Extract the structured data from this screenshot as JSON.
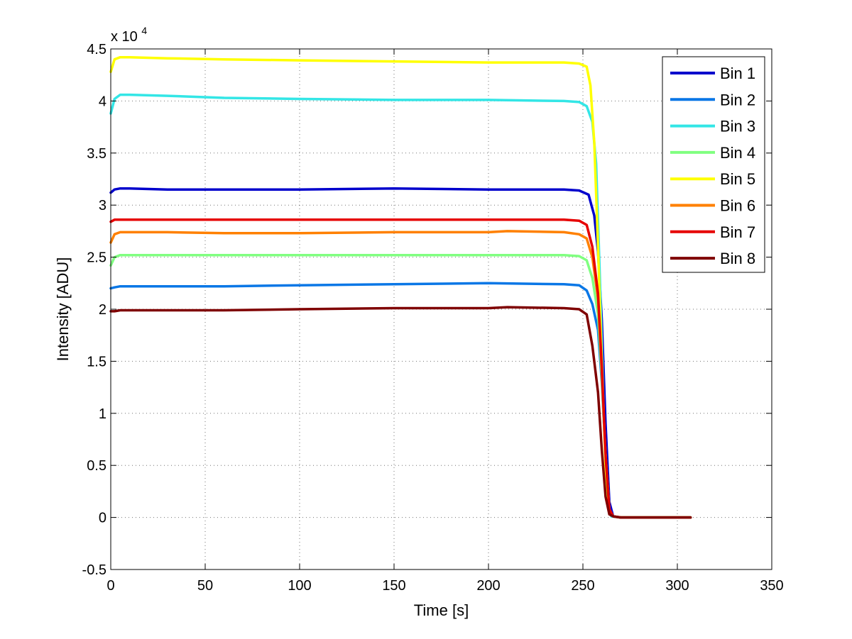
{
  "chart_data": {
    "type": "line",
    "title": "",
    "xlabel": "Time [s]",
    "ylabel": "Intensity [ADU]",
    "y_multiplier_label": "x 10",
    "y_multiplier_exponent": "4",
    "xlim": [
      0,
      350
    ],
    "ylim": [
      -0.5,
      4.5
    ],
    "y_unit_scale": 10000,
    "x_ticks": [
      "0",
      "50",
      "100",
      "150",
      "200",
      "250",
      "300",
      "350"
    ],
    "y_ticks": [
      "-0.5",
      "0",
      "0.5",
      "1",
      "1.5",
      "2",
      "2.5",
      "3",
      "3.5",
      "4",
      "4.5"
    ],
    "grid": true,
    "legend_position": "top-right",
    "series": [
      {
        "name": "Bin 1",
        "color": "#0000CC",
        "x": [
          0,
          2,
          5,
          10,
          30,
          60,
          100,
          150,
          200,
          240,
          248,
          253,
          256,
          258,
          260,
          262,
          264,
          266,
          270,
          300,
          307
        ],
        "y": [
          3.12,
          3.15,
          3.16,
          3.16,
          3.15,
          3.15,
          3.15,
          3.16,
          3.15,
          3.15,
          3.14,
          3.1,
          2.9,
          2.55,
          1.9,
          0.9,
          0.15,
          0.01,
          0,
          0,
          0
        ]
      },
      {
        "name": "Bin 2",
        "color": "#0A77E6",
        "x": [
          0,
          2,
          5,
          10,
          30,
          60,
          100,
          150,
          200,
          240,
          248,
          252,
          255,
          258,
          260,
          262,
          264,
          266,
          270,
          300,
          307
        ],
        "y": [
          2.2,
          2.21,
          2.22,
          2.22,
          2.22,
          2.22,
          2.23,
          2.24,
          2.25,
          2.24,
          2.23,
          2.18,
          2.05,
          1.8,
          1.3,
          0.6,
          0.08,
          0.01,
          0,
          0,
          0
        ]
      },
      {
        "name": "Bin 3",
        "color": "#33E6E6",
        "x": [
          0,
          2,
          5,
          10,
          30,
          60,
          100,
          150,
          200,
          240,
          248,
          252,
          255,
          257,
          259,
          261,
          263,
          265,
          270,
          300,
          307
        ],
        "y": [
          3.88,
          4.02,
          4.06,
          4.06,
          4.05,
          4.03,
          4.02,
          4.01,
          4.01,
          4.0,
          3.99,
          3.95,
          3.8,
          3.4,
          2.3,
          1.0,
          0.15,
          0.01,
          0,
          0,
          0
        ]
      },
      {
        "name": "Bin 4",
        "color": "#80FF80",
        "x": [
          0,
          2,
          5,
          10,
          30,
          60,
          100,
          150,
          200,
          240,
          248,
          252,
          255,
          258,
          260,
          262,
          264,
          266,
          270,
          300,
          307
        ],
        "y": [
          2.42,
          2.5,
          2.52,
          2.52,
          2.52,
          2.52,
          2.52,
          2.52,
          2.52,
          2.52,
          2.51,
          2.47,
          2.3,
          1.95,
          1.35,
          0.6,
          0.08,
          0.01,
          0,
          0,
          0
        ]
      },
      {
        "name": "Bin 5",
        "color": "#FFFF00",
        "x": [
          0,
          2,
          5,
          10,
          30,
          60,
          100,
          150,
          200,
          240,
          248,
          252,
          254,
          256,
          258,
          260,
          262,
          264,
          266,
          270,
          300,
          307
        ],
        "y": [
          4.28,
          4.4,
          4.42,
          4.42,
          4.41,
          4.4,
          4.39,
          4.38,
          4.37,
          4.37,
          4.36,
          4.33,
          4.15,
          3.6,
          2.6,
          1.5,
          0.5,
          0.05,
          0.01,
          0,
          0,
          0
        ]
      },
      {
        "name": "Bin 6",
        "color": "#FF8000",
        "x": [
          0,
          2,
          5,
          10,
          30,
          60,
          100,
          150,
          200,
          210,
          240,
          248,
          252,
          255,
          258,
          260,
          262,
          264,
          266,
          270,
          300,
          307
        ],
        "y": [
          2.64,
          2.72,
          2.74,
          2.74,
          2.74,
          2.73,
          2.73,
          2.74,
          2.74,
          2.75,
          2.74,
          2.72,
          2.68,
          2.5,
          2.1,
          1.4,
          0.6,
          0.08,
          0.01,
          0,
          0,
          0
        ]
      },
      {
        "name": "Bin 7",
        "color": "#E60000",
        "x": [
          0,
          2,
          5,
          10,
          30,
          60,
          100,
          150,
          200,
          240,
          248,
          252,
          255,
          258,
          260,
          262,
          264,
          266,
          270,
          300,
          307
        ],
        "y": [
          2.84,
          2.86,
          2.86,
          2.86,
          2.86,
          2.86,
          2.86,
          2.86,
          2.86,
          2.86,
          2.85,
          2.81,
          2.6,
          2.15,
          1.45,
          0.6,
          0.08,
          0.01,
          0,
          0,
          0
        ]
      },
      {
        "name": "Bin 8",
        "color": "#7F0000",
        "x": [
          0,
          2,
          5,
          10,
          30,
          60,
          100,
          150,
          200,
          210,
          240,
          248,
          252,
          255,
          258,
          260,
          262,
          264,
          266,
          270,
          300,
          307
        ],
        "y": [
          1.98,
          1.98,
          1.99,
          1.99,
          1.99,
          1.99,
          2.0,
          2.01,
          2.01,
          2.02,
          2.01,
          2.0,
          1.95,
          1.65,
          1.2,
          0.65,
          0.2,
          0.03,
          0.01,
          0,
          0,
          0
        ]
      }
    ]
  }
}
